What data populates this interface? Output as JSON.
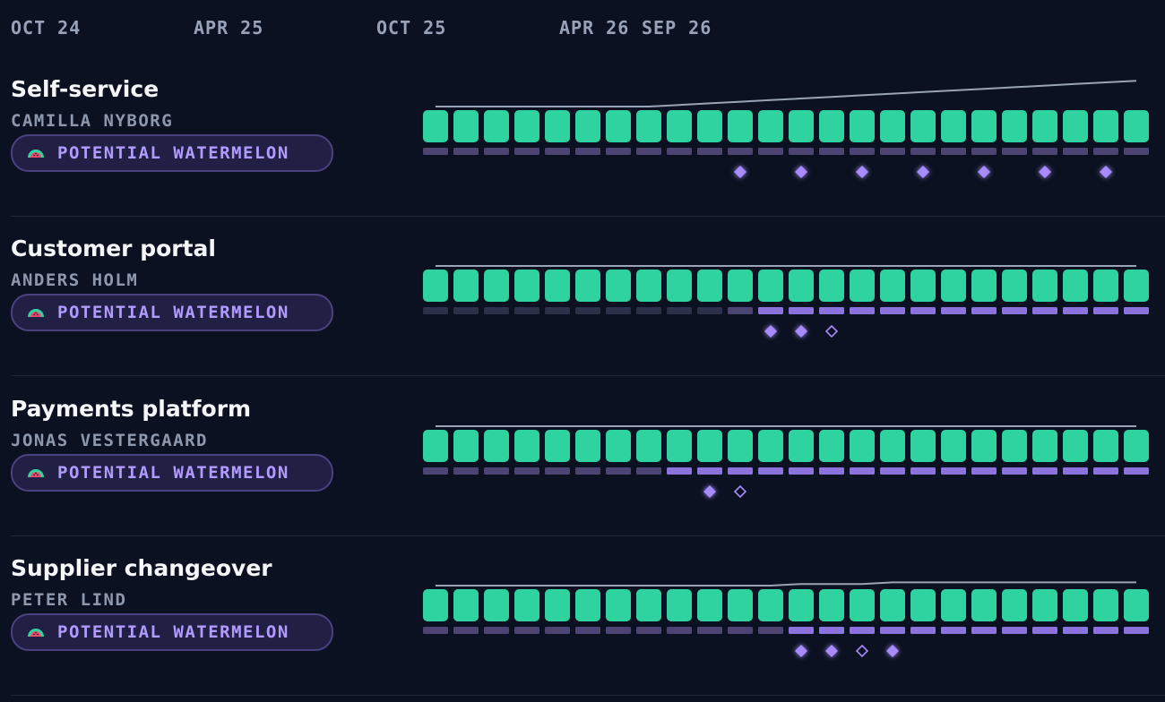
{
  "colors": {
    "background": "#0b1120",
    "period_block": "#2fd39f",
    "track_dim": "#2c3048",
    "track_mid": "#4c4574",
    "track_bright": "#8b72dc",
    "milestone": "#a78bfa",
    "trend_line": "#9aa4b6",
    "badge_fill": "#221f45",
    "badge_border": "#4a4280",
    "badge_text": "#b19bff"
  },
  "timeline": {
    "labels": [
      "OCT 24",
      "APR 25",
      "OCT 25",
      "APR 26",
      "SEP 26"
    ]
  },
  "projects": [
    {
      "title": "Self-service",
      "owner": "CAMILLA NYBORG",
      "badge": {
        "label": "POTENTIAL WATERMELON",
        "icon": "watermelon-icon"
      },
      "periods": 24,
      "track_levels": [
        1,
        1,
        1,
        1,
        1,
        1,
        1,
        1,
        1,
        1,
        1,
        1,
        1,
        1,
        1,
        1,
        1,
        1,
        1,
        1,
        1,
        1,
        1,
        1
      ],
      "milestones": [
        {
          "period": 10,
          "style": "filled"
        },
        {
          "period": 12,
          "style": "filled"
        },
        {
          "period": 14,
          "style": "filled"
        },
        {
          "period": 16,
          "style": "filled"
        },
        {
          "period": 18,
          "style": "filled"
        },
        {
          "period": 20,
          "style": "filled"
        },
        {
          "period": 22,
          "style": "filled"
        }
      ],
      "trend": [
        0,
        0,
        0,
        0,
        0,
        0,
        0,
        0,
        1,
        2,
        3,
        4,
        5,
        6,
        7,
        8,
        9,
        10,
        11,
        12,
        13,
        14,
        15,
        16
      ]
    },
    {
      "title": "Customer portal",
      "owner": "ANDERS HOLM",
      "badge": {
        "label": "POTENTIAL WATERMELON",
        "icon": "watermelon-icon"
      },
      "periods": 24,
      "track_levels": [
        0,
        0,
        0,
        0,
        0,
        0,
        0,
        0,
        0,
        0,
        1,
        2,
        2,
        2,
        2,
        2,
        2,
        2,
        2,
        2,
        2,
        2,
        2,
        2
      ],
      "milestones": [
        {
          "period": 11,
          "style": "filled"
        },
        {
          "period": 12,
          "style": "filled"
        },
        {
          "period": 13,
          "style": "outline"
        }
      ],
      "trend": [
        0,
        0,
        0,
        0,
        0,
        0,
        0,
        0,
        0,
        0,
        0,
        0,
        0,
        0,
        0,
        0,
        0,
        0,
        0,
        0,
        0,
        0,
        0,
        0
      ]
    },
    {
      "title": "Payments platform",
      "owner": "JONAS VESTERGAARD",
      "badge": {
        "label": "POTENTIAL WATERMELON",
        "icon": "watermelon-icon"
      },
      "periods": 24,
      "track_levels": [
        1,
        1,
        1,
        1,
        1,
        1,
        1,
        1,
        2,
        2,
        2,
        2,
        2,
        2,
        2,
        2,
        2,
        2,
        2,
        2,
        2,
        2,
        2,
        2
      ],
      "milestones": [
        {
          "period": 9,
          "style": "filled"
        },
        {
          "period": 10,
          "style": "outline"
        }
      ],
      "trend": [
        0,
        0,
        0,
        0,
        0,
        0,
        0,
        0,
        0,
        0,
        0,
        0,
        0,
        0,
        0,
        0,
        0,
        0,
        0,
        0,
        0,
        0,
        0,
        0
      ]
    },
    {
      "title": "Supplier changeover",
      "owner": "PETER LIND",
      "badge": {
        "label": "POTENTIAL WATERMELON",
        "icon": "watermelon-icon"
      },
      "periods": 24,
      "track_levels": [
        1,
        1,
        1,
        1,
        1,
        1,
        1,
        1,
        1,
        1,
        1,
        1,
        2,
        2,
        2,
        2,
        2,
        2,
        2,
        2,
        2,
        2,
        2,
        2
      ],
      "milestones": [
        {
          "period": 12,
          "style": "filled"
        },
        {
          "period": 13,
          "style": "filled"
        },
        {
          "period": 14,
          "style": "outline"
        },
        {
          "period": 15,
          "style": "filled"
        }
      ],
      "trend": [
        0,
        0,
        0,
        0,
        0,
        0,
        0,
        0,
        0,
        0,
        0,
        0,
        1,
        1,
        1,
        2,
        2,
        2,
        2,
        2,
        2,
        2,
        2,
        2
      ]
    }
  ]
}
